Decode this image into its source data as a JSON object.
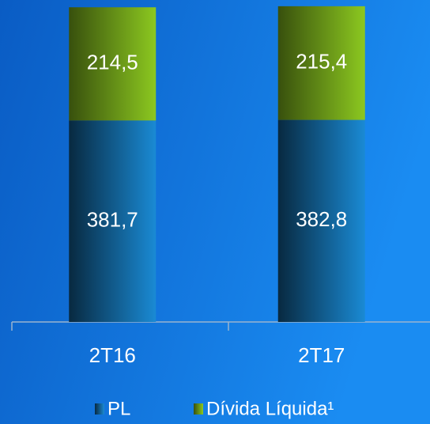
{
  "chart_data": {
    "type": "stacked_bar",
    "categories": [
      "2T16",
      "2T17"
    ],
    "series": [
      {
        "name": "PL",
        "color": "#1a8ad4",
        "values": [
          381.7,
          382.8
        ],
        "value_labels": [
          "381,7",
          "382,8"
        ]
      },
      {
        "name": "Dívida Líquida¹",
        "color": "#8cc820",
        "values": [
          214.5,
          215.4
        ],
        "value_labels": [
          "214,5",
          "215,4"
        ]
      }
    ],
    "ylim": [
      0,
      610
    ]
  }
}
